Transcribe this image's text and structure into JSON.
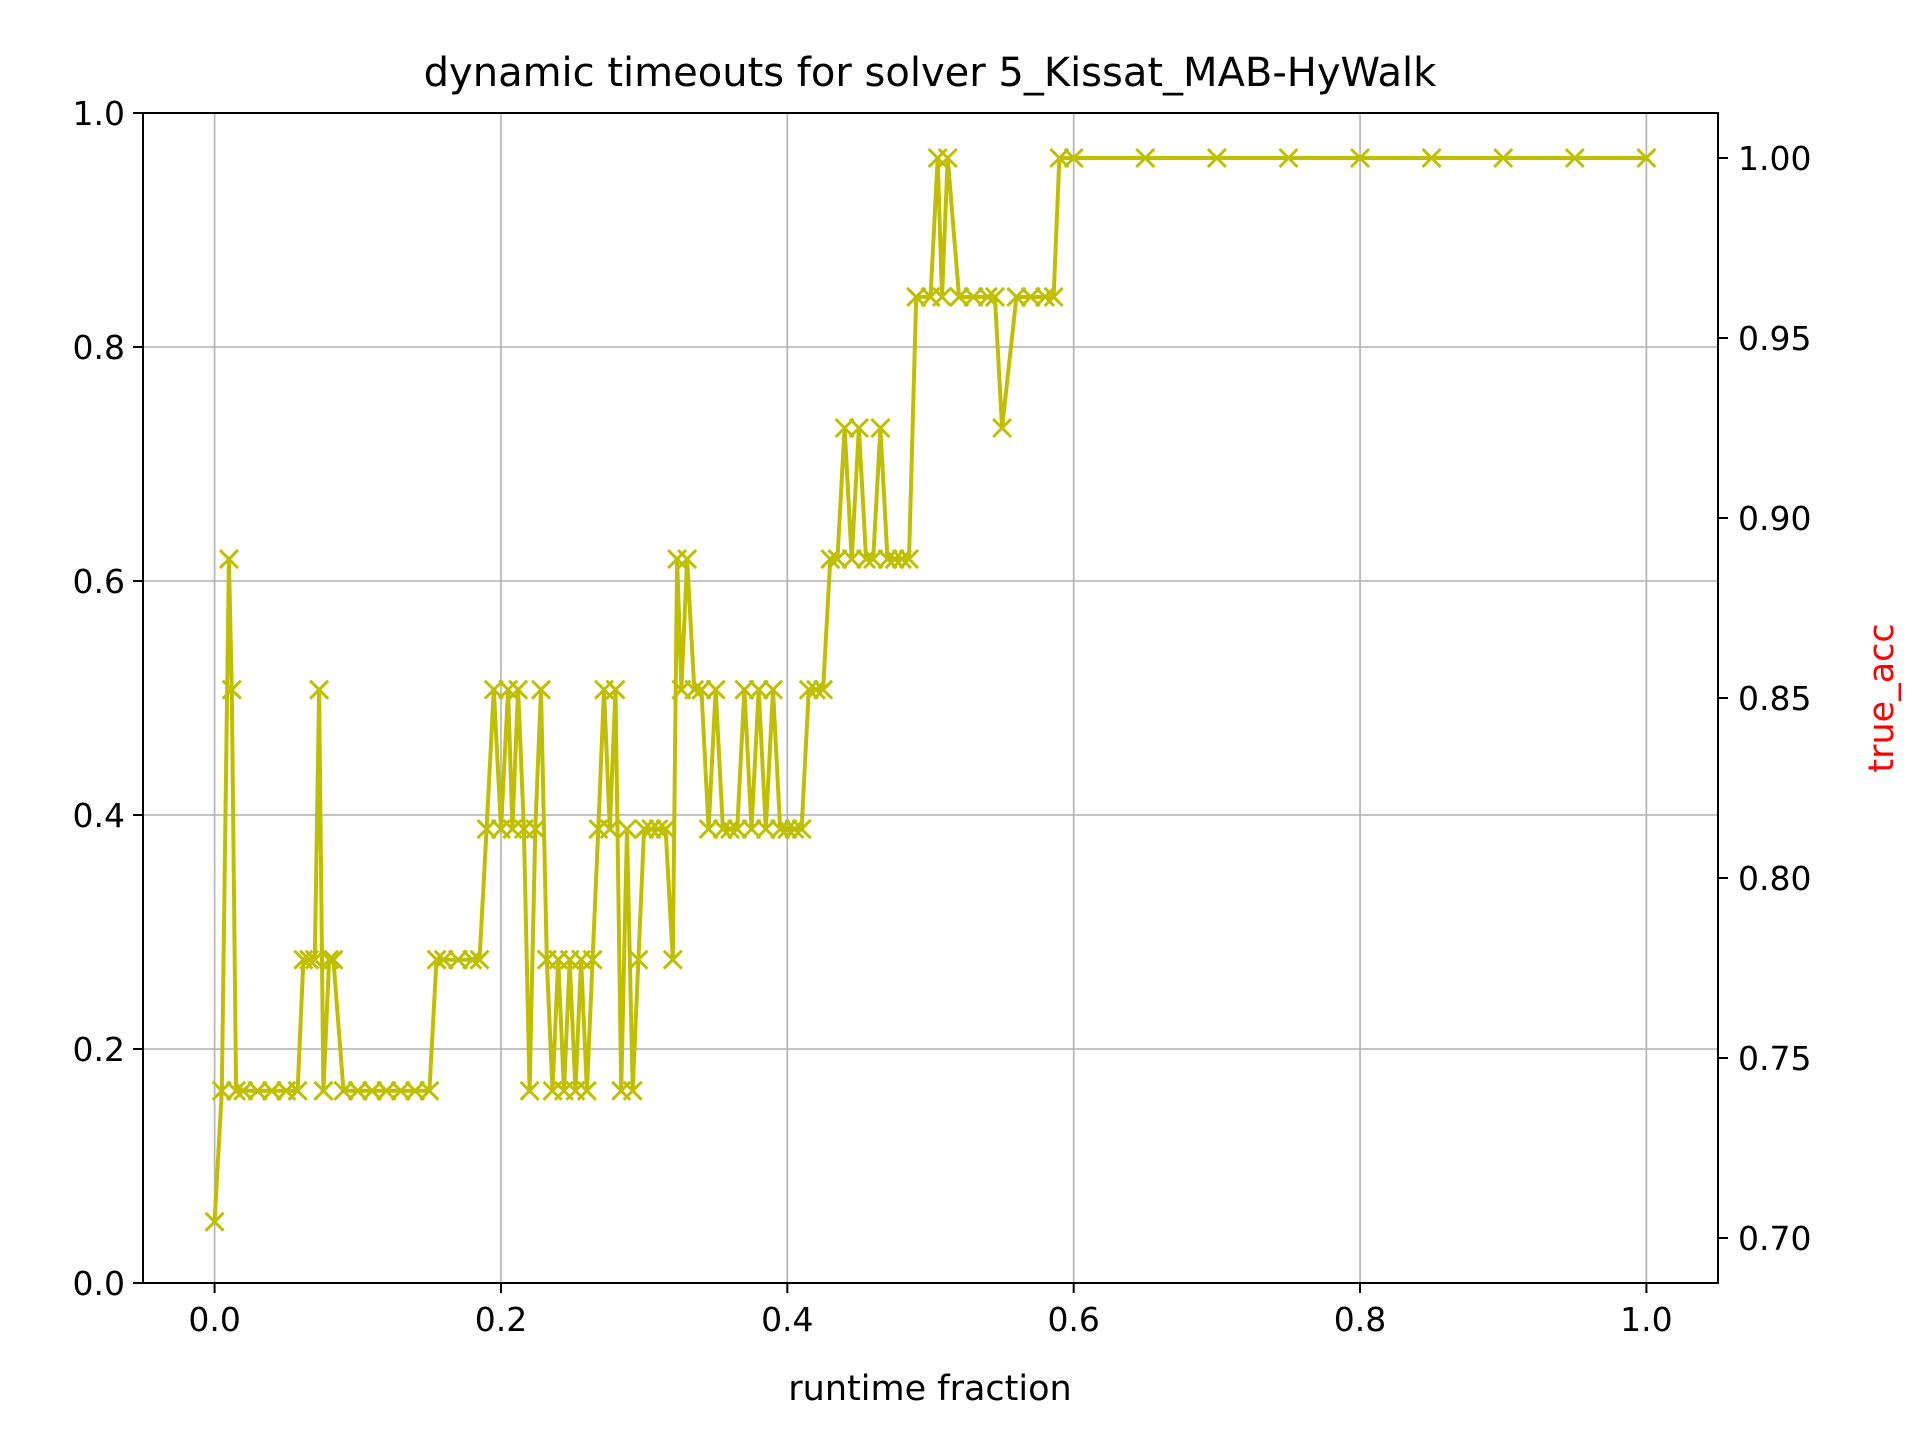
{
  "chart_data": {
    "type": "line",
    "title": "dynamic timeouts for solver 5_Kissat_MAB-HyWalk",
    "xlabel": "runtime fraction",
    "ylabel": "",
    "ylabel_right": "true_acc",
    "xlim": [
      -0.05,
      1.05
    ],
    "ylim": [
      0.0,
      1.0
    ],
    "ylim_right": [
      0.6875,
      1.0125
    ],
    "x_ticks": [
      "0.0",
      "0.2",
      "0.4",
      "0.6",
      "0.8",
      "1.0"
    ],
    "y_ticks": [
      "0.0",
      "0.2",
      "0.4",
      "0.6",
      "0.8",
      "1.0"
    ],
    "y_ticks_right": [
      "0.70",
      "0.75",
      "0.80",
      "0.85",
      "0.90",
      "0.95",
      "1.00"
    ],
    "grid": true,
    "legend": "none",
    "colors": {
      "series": "#bfbf00",
      "right_label": "#ff0000",
      "grid": "#b0b0b0",
      "axis": "#000000"
    },
    "marker": "x",
    "series": [
      {
        "axis": "right",
        "x": [
          0.0,
          0.005,
          0.01,
          0.012,
          0.015,
          0.02,
          0.03,
          0.04,
          0.05,
          0.058,
          0.062,
          0.066,
          0.07,
          0.073,
          0.076,
          0.08,
          0.083,
          0.09,
          0.1,
          0.11,
          0.12,
          0.13,
          0.14,
          0.15,
          0.155,
          0.16,
          0.17,
          0.18,
          0.185,
          0.19,
          0.195,
          0.2,
          0.205,
          0.208,
          0.212,
          0.216,
          0.22,
          0.224,
          0.228,
          0.232,
          0.236,
          0.24,
          0.244,
          0.248,
          0.252,
          0.256,
          0.26,
          0.264,
          0.268,
          0.272,
          0.276,
          0.28,
          0.284,
          0.288,
          0.292,
          0.296,
          0.3,
          0.305,
          0.31,
          0.315,
          0.32,
          0.323,
          0.326,
          0.33,
          0.335,
          0.34,
          0.345,
          0.35,
          0.355,
          0.36,
          0.365,
          0.37,
          0.375,
          0.38,
          0.385,
          0.39,
          0.395,
          0.4,
          0.405,
          0.41,
          0.415,
          0.42,
          0.425,
          0.43,
          0.435,
          0.44,
          0.445,
          0.45,
          0.455,
          0.46,
          0.465,
          0.47,
          0.475,
          0.48,
          0.485,
          0.49,
          0.5,
          0.505,
          0.508,
          0.512,
          0.52,
          0.53,
          0.54,
          0.545,
          0.55,
          0.56,
          0.57,
          0.58,
          0.586,
          0.59,
          0.6,
          0.65,
          0.7,
          0.75,
          0.8,
          0.85,
          0.9,
          0.95,
          1.0
        ],
        "values": [
          0.7045,
          0.7409,
          0.8886,
          0.8523,
          0.7409,
          0.7409,
          0.7409,
          0.7409,
          0.7409,
          0.7409,
          0.7773,
          0.7773,
          0.7773,
          0.8523,
          0.7409,
          0.7773,
          0.7773,
          0.7409,
          0.7409,
          0.7409,
          0.7409,
          0.7409,
          0.7409,
          0.7409,
          0.7773,
          0.7773,
          0.7773,
          0.7773,
          0.7773,
          0.8136,
          0.8523,
          0.8136,
          0.8523,
          0.8136,
          0.8523,
          0.8136,
          0.7409,
          0.8136,
          0.8523,
          0.7773,
          0.7409,
          0.7773,
          0.7409,
          0.7773,
          0.7409,
          0.7773,
          0.7409,
          0.7773,
          0.8136,
          0.8523,
          0.8136,
          0.8523,
          0.7409,
          0.8136,
          0.7409,
          0.7773,
          0.8136,
          0.8136,
          0.8136,
          0.8136,
          0.7773,
          0.8886,
          0.8523,
          0.8886,
          0.8523,
          0.8523,
          0.8136,
          0.8523,
          0.8136,
          0.8136,
          0.8136,
          0.8523,
          0.8136,
          0.8523,
          0.8136,
          0.8523,
          0.8136,
          0.8136,
          0.8136,
          0.8136,
          0.8523,
          0.8523,
          0.8523,
          0.8886,
          0.8886,
          0.925,
          0.8886,
          0.925,
          0.8886,
          0.8886,
          0.925,
          0.8886,
          0.8886,
          0.8886,
          0.8886,
          0.9614,
          0.9614,
          1.0,
          0.9614,
          1.0,
          0.9614,
          0.9614,
          0.9614,
          0.9614,
          0.925,
          0.9614,
          0.9614,
          0.9614,
          0.9614,
          1.0,
          1.0,
          1.0,
          1.0,
          1.0,
          1.0,
          1.0,
          1.0,
          1.0,
          1.0
        ]
      }
    ]
  }
}
